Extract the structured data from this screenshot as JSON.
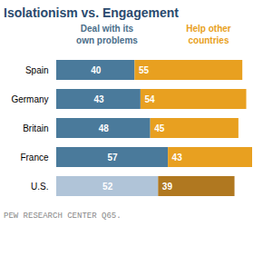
{
  "chart_data": {
    "type": "bar",
    "title": "Isolationism vs. Engagement",
    "orientation": "horizontal",
    "stacked": true,
    "data_labels": true,
    "tick_labels": "y",
    "categories": [
      "Spain",
      "Germany",
      "Britain",
      "France",
      "U.S."
    ],
    "series": [
      {
        "name": "Deal with its\nown problems",
        "color": "#4a6e8a",
        "colors": [
          "#4a7a9b",
          "#4a7a9b",
          "#4a7a9b",
          "#4a7a9b",
          "#b0c4d8"
        ],
        "values": [
          40,
          43,
          48,
          57,
          52
        ]
      },
      {
        "name": "Help other\ncountries",
        "color": "#e8a020",
        "colors": [
          "#e8a020",
          "#e8a020",
          "#e8a020",
          "#e8a020",
          "#b07820"
        ],
        "values": [
          55,
          54,
          45,
          43,
          39
        ]
      }
    ],
    "xlim": [
      0,
      100
    ],
    "footnote": "PEW RESEARCH CENTER Q65."
  }
}
